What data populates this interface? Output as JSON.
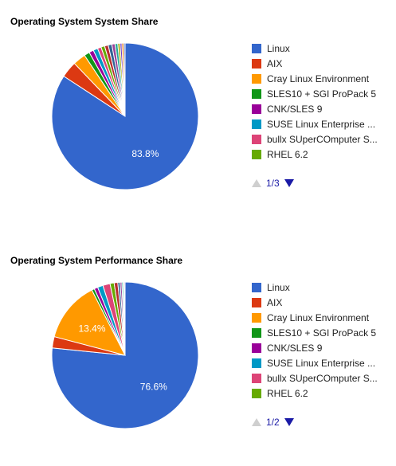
{
  "colors": [
    "#3366cc",
    "#dc3912",
    "#ff9900",
    "#109618",
    "#990099",
    "#0099c6",
    "#dd4477",
    "#66aa00",
    "#b82e2e",
    "#316395",
    "#994499",
    "#22aa99",
    "#aaaa11",
    "#6633cc",
    "#e67300"
  ],
  "chart_data": [
    {
      "type": "pie",
      "title": "Operating System System Share",
      "slices": [
        {
          "label": "Linux",
          "value": 83.8,
          "show_label": "83.8%"
        },
        {
          "label": "AIX",
          "value": 3.6
        },
        {
          "label": "Cray Linux Environment",
          "value": 2.8
        },
        {
          "label": "SLES10 + SGI ProPack 5",
          "value": 1.2
        },
        {
          "label": "CNK/SLES 9",
          "value": 1.0
        },
        {
          "label": "SUSE Linux Enterprise ...",
          "value": 1.0
        },
        {
          "label": "bullx SUperCOmputer S...",
          "value": 0.8
        },
        {
          "label": "RHEL 6.2",
          "value": 0.8
        },
        {
          "label": "",
          "value": 0.8
        },
        {
          "label": "",
          "value": 0.8
        },
        {
          "label": "",
          "value": 0.7
        },
        {
          "label": "",
          "value": 0.6
        },
        {
          "label": "",
          "value": 0.5
        },
        {
          "label": "",
          "value": 0.4
        },
        {
          "label": "",
          "value": 0.4
        },
        {
          "label": "",
          "value": 0.3
        }
      ],
      "legend_visible": 8,
      "legend_placement": "right",
      "pager": "1/3"
    },
    {
      "type": "pie",
      "title": "Operating System Performance Share",
      "slices": [
        {
          "label": "Linux",
          "value": 76.6,
          "show_label": "76.6%"
        },
        {
          "label": "AIX",
          "value": 2.5
        },
        {
          "label": "Cray Linux Environment",
          "value": 13.4,
          "show_label": "13.4%"
        },
        {
          "label": "SLES10 + SGI ProPack 5",
          "value": 0.6
        },
        {
          "label": "CNK/SLES 9",
          "value": 0.8
        },
        {
          "label": "SUSE Linux Enterprise ...",
          "value": 1.2
        },
        {
          "label": "bullx SUperCOmputer S...",
          "value": 1.6
        },
        {
          "label": "RHEL 6.2",
          "value": 0.9
        },
        {
          "label": "",
          "value": 0.8
        },
        {
          "label": "",
          "value": 0.5
        },
        {
          "label": "",
          "value": 0.4
        },
        {
          "label": "",
          "value": 0.3
        },
        {
          "label": "",
          "value": 0.2
        },
        {
          "label": "",
          "value": 0.2
        }
      ],
      "legend_visible": 8,
      "legend_placement": "right",
      "pager": "1/2"
    }
  ]
}
